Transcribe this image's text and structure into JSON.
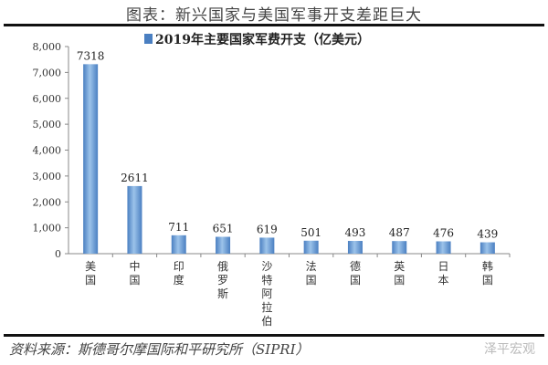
{
  "header": {
    "title": "图表：新兴国家与美国军事开支差距巨大"
  },
  "footer": {
    "source": "资料来源：斯德哥尔摩国际和平研究所（SIPRI）",
    "watermark": "泽平宏观"
  },
  "colors": {
    "bar": "#4a7fc1",
    "bar_highlight": "#9cc3ea",
    "axis": "#888888"
  },
  "chart_data": {
    "type": "bar",
    "title": "",
    "categories": [
      "美国",
      "中国",
      "印度",
      "俄罗斯",
      "沙特阿拉伯",
      "法国",
      "德国",
      "英国",
      "日本",
      "韩国"
    ],
    "series": [
      {
        "name": "2019年主要国家军费开支（亿美元）",
        "values": [
          7318,
          2611,
          711,
          651,
          619,
          501,
          493,
          487,
          476,
          439
        ]
      }
    ],
    "data_labels": [
      "7318",
      "2611",
      "711",
      "651",
      "619",
      "501",
      "493",
      "487",
      "476",
      "439"
    ],
    "yticks": [
      "0",
      "1,000",
      "2,000",
      "3,000",
      "4,000",
      "5,000",
      "6,000",
      "7,000",
      "8,000"
    ],
    "ylim": [
      0,
      8000
    ],
    "xlabel": "",
    "ylabel": "",
    "legend": "top-center",
    "grid": false
  }
}
